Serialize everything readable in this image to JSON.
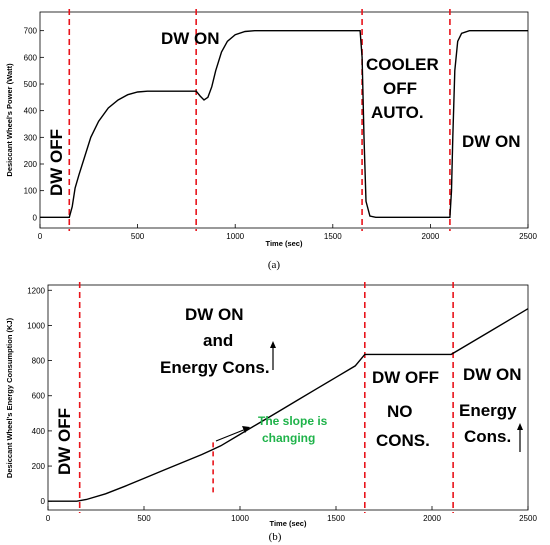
{
  "chart_data": [
    {
      "type": "line",
      "panel": "(a)",
      "xlabel": "Time (sec)",
      "ylabel": "Desiccant Wheel's Power (Watt)",
      "xlim": [
        0,
        2500
      ],
      "ylim": [
        -40,
        770
      ],
      "xticks": [
        0,
        500,
        1000,
        1500,
        2000,
        2500
      ],
      "yticks": [
        0,
        100,
        200,
        300,
        400,
        500,
        600,
        700
      ],
      "grid": false,
      "series": [
        {
          "color": "#000000",
          "x": [
            0,
            150,
            165,
            180,
            200,
            230,
            260,
            300,
            350,
            400,
            450,
            500,
            550,
            600,
            700,
            800,
            820,
            840,
            860,
            880,
            900,
            930,
            960,
            1000,
            1050,
            1100,
            1200,
            1300,
            1400,
            1500,
            1600,
            1640,
            1650,
            1660,
            1670,
            1690,
            1720,
            1800,
            1900,
            2000,
            2080,
            2100,
            2108,
            2115,
            2125,
            2140,
            2160,
            2200,
            2300,
            2400,
            2500
          ],
          "y": [
            0,
            0,
            40,
            110,
            160,
            230,
            300,
            360,
            410,
            440,
            460,
            470,
            473,
            473,
            473,
            473,
            455,
            440,
            450,
            490,
            550,
            620,
            660,
            685,
            697,
            700,
            700,
            700,
            700,
            700,
            700,
            700,
            600,
            300,
            60,
            5,
            0,
            0,
            0,
            0,
            0,
            0,
            100,
            300,
            550,
            660,
            690,
            700,
            700,
            700,
            700
          ]
        }
      ],
      "vlines": [
        150,
        800,
        1650,
        2100
      ],
      "annotations": [
        {
          "text": "DW OFF"
        },
        {
          "text": "DW ON"
        },
        {
          "text": "COOLER"
        },
        {
          "text": "OFF"
        },
        {
          "text": "AUTO."
        },
        {
          "text": "DW ON"
        }
      ]
    },
    {
      "type": "line",
      "panel": "(b)",
      "xlabel": "Time (sec)",
      "ylabel": "Desiccant Wheel's Energy Consumption (KJ)",
      "xlim": [
        0,
        2500
      ],
      "ylim": [
        -50,
        1230
      ],
      "xticks": [
        0,
        500,
        1000,
        1500,
        2000,
        2500
      ],
      "yticks": [
        0,
        200,
        400,
        600,
        800,
        1000,
        1200
      ],
      "grid": false,
      "series": [
        {
          "color": "#000000",
          "x": [
            0,
            150,
            200,
            300,
            400,
            500,
            600,
            700,
            800,
            850,
            900,
            1000,
            1100,
            1200,
            1300,
            1400,
            1500,
            1600,
            1650,
            1700,
            1800,
            1900,
            2000,
            2100,
            2200,
            2300,
            2400,
            2500
          ],
          "y": [
            0,
            0,
            10,
            42,
            85,
            130,
            175,
            220,
            265,
            290,
            315,
            380,
            445,
            510,
            575,
            640,
            705,
            770,
            835,
            835,
            835,
            835,
            835,
            835,
            900,
            965,
            1030,
            1095
          ]
        }
      ],
      "vlines": [
        165,
        1650,
        2110
      ],
      "short_vline": {
        "x": 860,
        "y1": 50,
        "y2": 340
      },
      "annotations": [
        {
          "text": "DW OFF"
        },
        {
          "text": "DW ON"
        },
        {
          "text": "and"
        },
        {
          "text": "Energy Cons."
        },
        {
          "text": "The slope is"
        },
        {
          "text": "changing"
        },
        {
          "text": "DW OFF"
        },
        {
          "text": "NO"
        },
        {
          "text": "CONS."
        },
        {
          "text": "DW ON"
        },
        {
          "text": "Energy"
        },
        {
          "text": "Cons."
        }
      ]
    }
  ],
  "colors": {
    "line": "#000000",
    "divider": "#e8141b",
    "note": "#1fb34a"
  }
}
